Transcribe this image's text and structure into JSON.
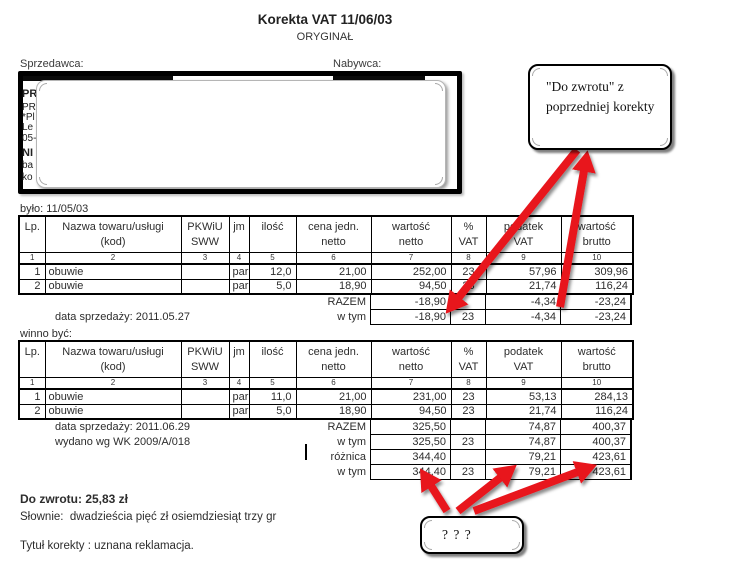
{
  "title": "Korekta VAT 11/06/03",
  "subtitle": "ORYGINAŁ",
  "parties": {
    "seller_label": "Sprzedawca:",
    "buyer_label": "Nabywca:",
    "seller_fragments": [
      "PR",
      "PR",
      "*Pl",
      "Le",
      "05-",
      "NI",
      "ba",
      "ko"
    ]
  },
  "callouts": {
    "top": "\"Do zwrotu\" z poprzedniej korekty",
    "bottom": "? ? ?"
  },
  "tables": [
    {
      "caption": "było: 11/05/03",
      "headers": [
        [
          "Lp.",
          ""
        ],
        [
          "Nazwa towaru/usługi",
          "(kod)"
        ],
        [
          "PKWiU",
          "SWW"
        ],
        [
          "jm",
          ""
        ],
        [
          "ilość",
          ""
        ],
        [
          "cena jedn.",
          "netto"
        ],
        [
          "wartość",
          "netto"
        ],
        [
          "%",
          "VAT"
        ],
        [
          "podatek",
          "VAT"
        ],
        [
          "wartość",
          "brutto"
        ]
      ],
      "col_numbers": [
        "1",
        "2",
        "3",
        "4",
        "5",
        "6",
        "7",
        "8",
        "9",
        "10"
      ],
      "rows": [
        [
          "1",
          "obuwie",
          "",
          "par",
          "12,0",
          "21,00",
          "252,00",
          "23",
          "57,96",
          "309,96"
        ],
        [
          "2",
          "obuwie",
          "",
          "par",
          "5,0",
          "18,90",
          "94,50",
          "23",
          "21,74",
          "116,24"
        ]
      ],
      "summary": [
        {
          "note": "",
          "label": "RAZEM",
          "cells": [
            "-18,90",
            "",
            "-4,34",
            "-23,24"
          ]
        },
        {
          "note": "data sprzedaży: 2011.05.27",
          "label": "w tym",
          "cells": [
            "-18,90",
            "23",
            "-4,34",
            "-23,24"
          ]
        }
      ]
    },
    {
      "caption": "winno być:",
      "headers": [
        [
          "Lp.",
          ""
        ],
        [
          "Nazwa towaru/usługi",
          "(kod)"
        ],
        [
          "PKWiU",
          "SWW"
        ],
        [
          "jm",
          ""
        ],
        [
          "ilość",
          ""
        ],
        [
          "cena jedn.",
          "netto"
        ],
        [
          "wartość",
          "netto"
        ],
        [
          "%",
          "VAT"
        ],
        [
          "podatek",
          "VAT"
        ],
        [
          "wartość",
          "brutto"
        ]
      ],
      "col_numbers": [
        "1",
        "2",
        "3",
        "4",
        "5",
        "6",
        "7",
        "8",
        "9",
        "10"
      ],
      "rows": [
        [
          "1",
          "obuwie",
          "",
          "par",
          "11,0",
          "21,00",
          "231,00",
          "23",
          "53,13",
          "284,13"
        ],
        [
          "2",
          "obuwie",
          "",
          "par",
          "5,0",
          "18,90",
          "94,50",
          "23",
          "21,74",
          "116,24"
        ]
      ],
      "summary": [
        {
          "note": "data sprzedaży: 2011.06.29",
          "label": "RAZEM",
          "cells": [
            "325,50",
            "",
            "74,87",
            "400,37"
          ]
        },
        {
          "note": "wydano wg WK 2009/A/018",
          "label": "w tym",
          "cells": [
            "325,50",
            "23",
            "74,87",
            "400,37"
          ]
        },
        {
          "note": "",
          "label": "różnica",
          "cells": [
            "344,40",
            "",
            "79,21",
            "423,61"
          ]
        },
        {
          "note": "",
          "label": "w tym",
          "cells": [
            "344,40",
            "23",
            "79,21",
            "423,61"
          ]
        }
      ]
    }
  ],
  "footer": {
    "refund": "Do zwrotu: 25,83 zł",
    "in_words": "Słownie:  dwadzieścia pięć zł osiemdziesiąt trzy gr",
    "reason": "Tytuł korekty : uznana reklamacja."
  },
  "colors": {
    "arrow_red": "#e8121c",
    "table_border": "#000000",
    "page_background": "#ffffff"
  }
}
